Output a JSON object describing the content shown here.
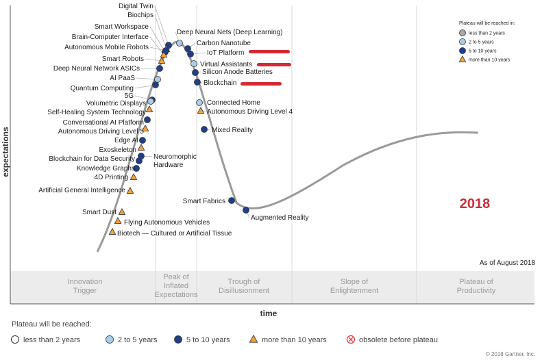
{
  "y_axis_label": "expectations",
  "x_axis_label": "time",
  "year_label": "2018",
  "as_of": "As of August 2018",
  "copyright": "© 2018 Gartner, Inc.",
  "phases": [
    "Innovation Trigger",
    "Peak of Inflated Expectations",
    "Trough of Disillusionment",
    "Slope of Enlightenment",
    "Plateau of Productivity"
  ],
  "small_legend": {
    "title": "Plateau will be reached in:",
    "items": [
      "less than 2 years",
      "2 to 5 years",
      "5 to 10 years",
      "more than 10 years"
    ]
  },
  "bottom_legend": {
    "title": "Plateau will be reached:",
    "items": [
      "less than 2 years",
      "2 to 5 years",
      "5 to 10 years",
      "more than 10 years",
      "obsolete before plateau"
    ]
  },
  "colors": {
    "curve": "#9a9a9a",
    "less_than_2": "#aaaaaa",
    "two_to_five": "#a9cdea",
    "five_to_ten": "#1f3f8a",
    "more_than_10": "#f0a33a",
    "obsolete": "#d9333c",
    "year": "#c8303a",
    "highlight": "#d42a36",
    "phase_band": "#ececec"
  },
  "technologies": [
    {
      "name": "Digital Twin",
      "marker": "five_to_ten"
    },
    {
      "name": "Biochips",
      "marker": "more_than_10"
    },
    {
      "name": "Smart Workspace",
      "marker": "five_to_ten"
    },
    {
      "name": "Brain-Computer Interface",
      "marker": "more_than_10"
    },
    {
      "name": "Autonomous Mobile Robots",
      "marker": "five_to_ten"
    },
    {
      "name": "Deep Neural Nets (Deep Learning)",
      "marker": "two_to_five"
    },
    {
      "name": "Carbon Nanotube",
      "marker": "five_to_ten"
    },
    {
      "name": "IoT Platform",
      "marker": "five_to_ten"
    },
    {
      "name": "Virtual Assistants",
      "marker": "two_to_five"
    },
    {
      "name": "Silicon Anode Batteries",
      "marker": "five_to_ten"
    },
    {
      "name": "Blockchain",
      "marker": "five_to_ten"
    },
    {
      "name": "Smart Robots",
      "marker": "more_than_10"
    },
    {
      "name": "Deep Neural Network ASICs",
      "marker": "five_to_ten"
    },
    {
      "name": "AI PaaS",
      "marker": "two_to_five"
    },
    {
      "name": "Quantum Computing",
      "marker": "five_to_ten"
    },
    {
      "name": "5G",
      "marker": "five_to_ten"
    },
    {
      "name": "Volumetric Displays",
      "marker": "two_to_five"
    },
    {
      "name": "Self-Healing System Technology",
      "marker": "more_than_10"
    },
    {
      "name": "Conversational AI Platform",
      "marker": "five_to_ten"
    },
    {
      "name": "Autonomous Driving Level 5",
      "marker": "more_than_10"
    },
    {
      "name": "Edge AI",
      "marker": "five_to_ten"
    },
    {
      "name": "Exoskeleton",
      "marker": "more_than_10"
    },
    {
      "name": "Blockchain for Data Security",
      "marker": "five_to_ten"
    },
    {
      "name": "Knowledge Graphs",
      "marker": "five_to_ten"
    },
    {
      "name": "4D Printing",
      "marker": "more_than_10"
    },
    {
      "name": "Artificial General Intelligence",
      "marker": "more_than_10"
    },
    {
      "name": "Smart Dust",
      "marker": "more_than_10"
    },
    {
      "name": "Flying Autonomous Vehicles",
      "marker": "more_than_10"
    },
    {
      "name": "Biotech — Cultured or Artificial Tissue",
      "marker": "more_than_10"
    },
    {
      "name": "Neuromorphic Hardware",
      "marker": "five_to_ten"
    },
    {
      "name": "Connected Home",
      "marker": "two_to_five"
    },
    {
      "name": "Autonomous Driving Level 4",
      "marker": "more_than_10"
    },
    {
      "name": "Mixed Reality",
      "marker": "five_to_ten"
    },
    {
      "name": "Smart Fabrics",
      "marker": "five_to_ten"
    },
    {
      "name": "Augmented Reality",
      "marker": "five_to_ten"
    }
  ]
}
